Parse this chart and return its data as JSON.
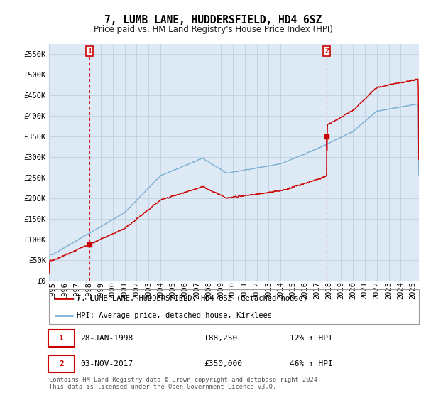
{
  "title": "7, LUMB LANE, HUDDERSFIELD, HD4 6SZ",
  "subtitle": "Price paid vs. HM Land Registry's House Price Index (HPI)",
  "ylim": [
    0,
    575000
  ],
  "yticks": [
    0,
    50000,
    100000,
    150000,
    200000,
    250000,
    300000,
    350000,
    400000,
    450000,
    500000,
    550000
  ],
  "xlim_start": 1994.7,
  "xlim_end": 2025.5,
  "sale1_date": 1998.08,
  "sale1_price": 88250,
  "sale1_label": "1",
  "sale2_date": 2017.84,
  "sale2_price": 350000,
  "sale2_label": "2",
  "legend_line1": "7, LUMB LANE, HUDDERSFIELD, HD4 6SZ (detached house)",
  "legend_line2": "HPI: Average price, detached house, Kirklees",
  "footer": "Contains HM Land Registry data © Crown copyright and database right 2024.\nThis data is licensed under the Open Government Licence v3.0.",
  "line_color_red": "#cc0000",
  "line_color_blue": "#7bafd4",
  "bg_color": "#eef4fb",
  "grid_color": "#c0d0e0",
  "plot_bg": "#ddeaf5",
  "title_fontsize": 10.5,
  "subtitle_fontsize": 8.5,
  "axis_fontsize": 7.5,
  "xtick_years": [
    1995,
    1996,
    1997,
    1998,
    1999,
    2000,
    2001,
    2002,
    2003,
    2004,
    2005,
    2006,
    2007,
    2008,
    2009,
    2010,
    2011,
    2012,
    2013,
    2014,
    2015,
    2016,
    2017,
    2018,
    2019,
    2020,
    2021,
    2022,
    2023,
    2024,
    2025
  ]
}
